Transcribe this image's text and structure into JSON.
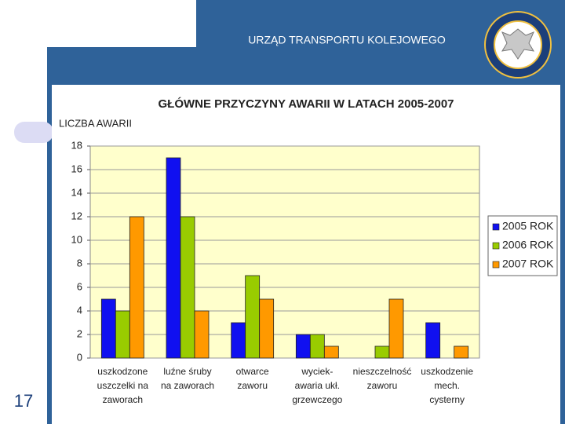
{
  "header": {
    "title": "URZĄD TRANSPORTU KOLEJOWEGO"
  },
  "page_number": "17",
  "chart_data": {
    "type": "bar",
    "title": "GŁÓWNE PRZYCZYNY AWARII W LATACH 2005-2007",
    "y_label": "LICZBA AWARII",
    "categories": [
      [
        "uszkodzone",
        "uszczelki na",
        "zaworach"
      ],
      [
        "luźne śruby",
        "na zaworach"
      ],
      [
        "otwarce",
        "zaworu"
      ],
      [
        "wyciek-",
        "awaria ukł.",
        "grzewczego"
      ],
      [
        "nieszczelność",
        "zaworu"
      ],
      [
        "uszkodzenie",
        "mech.",
        "cysterny"
      ]
    ],
    "series": [
      {
        "name": "2005 ROK",
        "color": "#1010f0",
        "values": [
          5,
          17,
          3,
          2,
          0,
          3
        ]
      },
      {
        "name": "2006 ROK",
        "color": "#99cc00",
        "values": [
          4,
          12,
          7,
          2,
          1,
          0
        ]
      },
      {
        "name": "2007 ROK",
        "color": "#ff9900",
        "values": [
          12,
          4,
          5,
          1,
          5,
          1
        ]
      }
    ],
    "ylim": [
      0,
      18
    ],
    "yticks": [
      0,
      2,
      4,
      6,
      8,
      10,
      12,
      14,
      16,
      18
    ],
    "grid": true,
    "legend": "right"
  }
}
